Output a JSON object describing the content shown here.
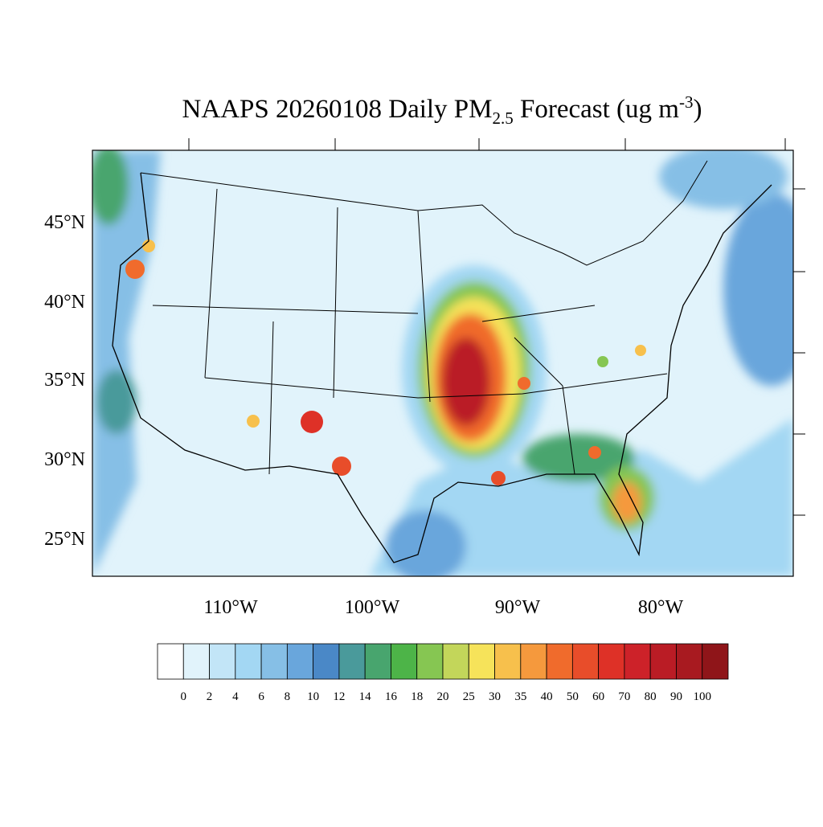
{
  "title": {
    "main": "NAAPS 20260108 Daily PM",
    "sub": "2.5",
    "after": " Forecast (ug m",
    "sup": "-3",
    "close": ")"
  },
  "lat_labels": [
    "45°N",
    "40°N",
    "35°N",
    "30°N",
    "25°N"
  ],
  "lon_labels": [
    "110°W",
    "100°W",
    "90°W",
    "80°W"
  ],
  "colorbar": {
    "colors": [
      "#ffffff",
      "#e1f3fb",
      "#c2e5f7",
      "#a3d7f3",
      "#86bfe6",
      "#69a6dc",
      "#4a88c7",
      "#4a9a9b",
      "#48a56e",
      "#4db448",
      "#86c652",
      "#c3d65a",
      "#f6e35a",
      "#f7c04c",
      "#f5993d",
      "#f06b2c",
      "#e84d2a",
      "#de3127",
      "#cd2229",
      "#ba1c25",
      "#a81a20",
      "#8f1519"
    ],
    "labels": [
      0,
      2,
      4,
      6,
      8,
      10,
      12,
      14,
      16,
      18,
      20,
      25,
      30,
      35,
      40,
      50,
      60,
      70,
      80,
      90,
      100
    ]
  }
}
